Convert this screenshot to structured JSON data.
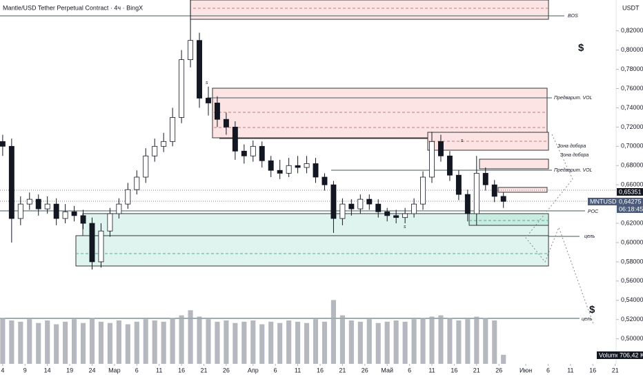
{
  "chart_data": {
    "type": "candlestick",
    "title": "Mantle/USD Tether Perpetual Contract · 4ч · BingX",
    "price_unit": "USDT",
    "x": [
      0,
      2,
      4,
      6,
      8,
      10,
      12,
      14,
      16,
      18,
      20,
      22,
      24,
      26,
      28,
      30,
      32,
      34,
      36,
      38,
      40,
      42,
      44,
      46,
      48,
      50,
      52,
      54,
      56,
      58,
      60,
      62,
      64,
      66,
      68,
      70,
      72,
      74,
      76,
      78,
      80,
      82,
      84,
      86,
      88,
      90,
      92,
      94,
      96,
      98,
      100,
      102,
      104,
      106,
      108,
      110,
      112
    ],
    "open": [
      0.705,
      0.7,
      0.625,
      0.64,
      0.645,
      0.635,
      0.64,
      0.625,
      0.632,
      0.628,
      0.62,
      0.58,
      0.612,
      0.63,
      0.64,
      0.655,
      0.668,
      0.69,
      0.7,
      0.705,
      0.73,
      0.79,
      0.81,
      0.75,
      0.745,
      0.728,
      0.72,
      0.695,
      0.69,
      0.7,
      0.685,
      0.675,
      0.672,
      0.68,
      0.678,
      0.682,
      0.668,
      0.66,
      0.625,
      0.64,
      0.635,
      0.645,
      0.64,
      0.632,
      0.628,
      0.626,
      0.63,
      0.64,
      0.668,
      0.705,
      0.69,
      0.67,
      0.65,
      0.63,
      0.672,
      0.66,
      0.648
    ],
    "high": [
      0.712,
      0.708,
      0.648,
      0.652,
      0.65,
      0.648,
      0.646,
      0.64,
      0.638,
      0.634,
      0.626,
      0.62,
      0.636,
      0.646,
      0.662,
      0.675,
      0.698,
      0.708,
      0.714,
      0.74,
      0.8,
      0.852,
      0.818,
      0.762,
      0.752,
      0.735,
      0.726,
      0.702,
      0.706,
      0.705,
      0.69,
      0.686,
      0.688,
      0.69,
      0.69,
      0.688,
      0.672,
      0.664,
      0.646,
      0.645,
      0.65,
      0.65,
      0.645,
      0.636,
      0.634,
      0.636,
      0.646,
      0.674,
      0.715,
      0.712,
      0.695,
      0.675,
      0.655,
      0.69,
      0.678,
      0.665,
      0.652
    ],
    "low": [
      0.69,
      0.6,
      0.618,
      0.634,
      0.628,
      0.63,
      0.618,
      0.62,
      0.622,
      0.614,
      0.572,
      0.574,
      0.606,
      0.625,
      0.635,
      0.65,
      0.662,
      0.684,
      0.694,
      0.7,
      0.724,
      0.782,
      0.74,
      0.732,
      0.72,
      0.712,
      0.686,
      0.682,
      0.684,
      0.678,
      0.668,
      0.666,
      0.668,
      0.672,
      0.672,
      0.662,
      0.654,
      0.61,
      0.618,
      0.628,
      0.63,
      0.634,
      0.626,
      0.622,
      0.62,
      0.62,
      0.626,
      0.634,
      0.662,
      0.684,
      0.664,
      0.644,
      0.622,
      0.618,
      0.654,
      0.642,
      0.636
    ],
    "close": [
      0.7,
      0.625,
      0.64,
      0.645,
      0.635,
      0.64,
      0.625,
      0.632,
      0.628,
      0.62,
      0.58,
      0.612,
      0.63,
      0.64,
      0.655,
      0.668,
      0.69,
      0.7,
      0.705,
      0.73,
      0.79,
      0.81,
      0.75,
      0.745,
      0.728,
      0.72,
      0.695,
      0.69,
      0.7,
      0.685,
      0.675,
      0.672,
      0.68,
      0.678,
      0.682,
      0.668,
      0.66,
      0.625,
      0.64,
      0.635,
      0.645,
      0.64,
      0.632,
      0.628,
      0.626,
      0.63,
      0.64,
      0.668,
      0.705,
      0.69,
      0.67,
      0.65,
      0.63,
      0.672,
      0.66,
      0.648,
      0.64275
    ],
    "volume": [
      3600,
      3400,
      3300,
      3500,
      3200,
      3400,
      3100,
      3300,
      3500,
      3200,
      3600,
      3300,
      3200,
      3400,
      3100,
      3300,
      3500,
      3400,
      3300,
      3600,
      3800,
      4200,
      3700,
      3500,
      3300,
      3400,
      3200,
      3300,
      3400,
      3100,
      3300,
      3200,
      3400,
      3300,
      3200,
      3500,
      3300,
      5000,
      3800,
      3400,
      3300,
      3500,
      3200,
      3300,
      3400,
      3300,
      3500,
      3600,
      3700,
      3800,
      3600,
      3400,
      3500,
      3700,
      3600,
      3400,
      706.42
    ],
    "volume_label": {
      "name": "Volume",
      "value_label": "706,42 K"
    },
    "up_color": "#ffffff",
    "down_color": "#131722",
    "wick_color": "#131722",
    "volume_color": "#a3a6af",
    "xlim": [
      -0.6,
      137.2
    ],
    "xticks": [
      {
        "value": 0,
        "label": "4"
      },
      {
        "value": 5,
        "label": "9"
      },
      {
        "value": 10,
        "label": "14"
      },
      {
        "value": 15,
        "label": "19"
      },
      {
        "value": 20,
        "label": "24"
      },
      {
        "value": 25,
        "label": "Мар"
      },
      {
        "value": 30,
        "label": "6"
      },
      {
        "value": 35,
        "label": "11"
      },
      {
        "value": 40,
        "label": "16"
      },
      {
        "value": 45,
        "label": "21"
      },
      {
        "value": 50,
        "label": "26"
      },
      {
        "value": 56,
        "label": "Апр"
      },
      {
        "value": 61,
        "label": "6"
      },
      {
        "value": 66,
        "label": "11"
      },
      {
        "value": 71,
        "label": "16"
      },
      {
        "value": 76,
        "label": "21"
      },
      {
        "value": 81,
        "label": "26"
      },
      {
        "value": 86,
        "label": "Май"
      },
      {
        "value": 91,
        "label": "6"
      },
      {
        "value": 96,
        "label": "11"
      },
      {
        "value": 101,
        "label": "16"
      },
      {
        "value": 106,
        "label": "21"
      },
      {
        "value": 111,
        "label": "26"
      },
      {
        "value": 117,
        "label": "Июн"
      },
      {
        "value": 122,
        "label": "6"
      },
      {
        "value": 127,
        "label": "11"
      },
      {
        "value": 132,
        "label": "16"
      },
      {
        "value": 137,
        "label": "21"
      }
    ],
    "ylim": [
      0.474,
      0.852
    ],
    "yticks": [
      {
        "value": 0.5,
        "label": "0,50000"
      },
      {
        "value": 0.52,
        "label": "0,52000"
      },
      {
        "value": 0.54,
        "label": "0,54000"
      },
      {
        "value": 0.56,
        "label": "0,56000"
      },
      {
        "value": 0.58,
        "label": "0,58000"
      },
      {
        "value": 0.6,
        "label": "0,60000"
      },
      {
        "value": 0.62,
        "label": "0,62000"
      },
      {
        "value": 0.64,
        "label": "0,64000"
      },
      {
        "value": 0.66,
        "label": "0,66000"
      },
      {
        "value": 0.68,
        "label": "0,68000"
      },
      {
        "value": 0.7,
        "label": "0,70000"
      },
      {
        "value": 0.72,
        "label": "0,72000"
      },
      {
        "value": 0.74,
        "label": "0,74000"
      },
      {
        "value": 0.76,
        "label": "0,76000"
      },
      {
        "value": 0.78,
        "label": "0,78000"
      },
      {
        "value": 0.8,
        "label": "0,80000"
      },
      {
        "value": 0.82,
        "label": "0,82000"
      }
    ],
    "y2lim": [
      0,
      5400
    ],
    "grid": false,
    "price_labels": {
      "level": "0,65351",
      "symbol": "MNTUSDT.P",
      "last": "0,64275",
      "countdown": "06:18:45"
    },
    "annotations": [
      "BOS",
      "Предварит. VOL",
      "Зона добора",
      "Зона добора",
      "Предварит. VOL",
      "POC",
      "цель",
      "цель",
      "$",
      "$",
      "s",
      "s",
      "s"
    ]
  }
}
